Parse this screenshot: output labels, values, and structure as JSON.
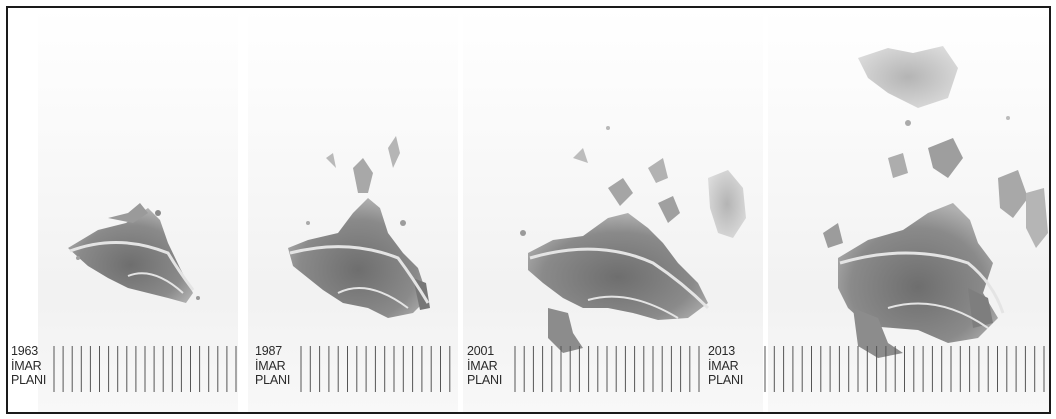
{
  "plans": [
    {
      "year": "1963",
      "line1": "İMAR",
      "line2": "PLANI"
    },
    {
      "year": "1987",
      "line1": "İMAR",
      "line2": "PLANI"
    },
    {
      "year": "2001",
      "line1": "İMAR",
      "line2": "PLANI"
    },
    {
      "year": "2013",
      "line1": "İMAR",
      "line2": "PLANI"
    }
  ],
  "colors": {
    "frame": "#1a1a1a",
    "urban_dark": "#7a7a7a",
    "urban_light": "#b8b8b8",
    "road": "#e8e8e8",
    "ticks": "#555555"
  }
}
